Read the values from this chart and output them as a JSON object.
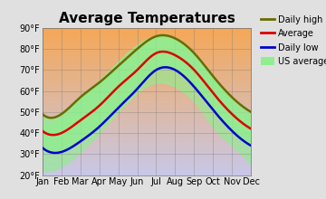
{
  "title": "Average Temperatures",
  "months": [
    "Jan",
    "Feb",
    "Mar",
    "Apr",
    "May",
    "Jun",
    "Jul",
    "Aug",
    "Sep",
    "Oct",
    "Nov",
    "Dec"
  ],
  "daily_high": [
    49,
    49,
    57,
    64,
    72,
    80,
    86,
    85,
    78,
    67,
    57,
    50
  ],
  "average": [
    41,
    40,
    46,
    53,
    62,
    70,
    78,
    77,
    70,
    59,
    49,
    42
  ],
  "daily_low": [
    33,
    31,
    36,
    43,
    52,
    61,
    70,
    70,
    62,
    51,
    41,
    34
  ],
  "us_high": [
    44,
    47,
    56,
    65,
    74,
    82,
    86,
    84,
    78,
    66,
    54,
    45
  ],
  "us_low": [
    22,
    24,
    31,
    40,
    50,
    59,
    64,
    62,
    55,
    43,
    34,
    25
  ],
  "ylim": [
    20,
    90
  ],
  "yticks": [
    20,
    30,
    40,
    50,
    60,
    70,
    80,
    90
  ],
  "ytick_labels": [
    "20°F",
    "30°F",
    "40°F",
    "50°F",
    "60°F",
    "70°F",
    "80°F",
    "90°F"
  ],
  "color_daily_high": "#6b6b00",
  "color_average": "#dd0000",
  "color_daily_low": "#0000cc",
  "color_fill_green": "#90ee90",
  "color_bg_top": "#f5a857",
  "color_bg_bottom": "#c8c8e8",
  "fig_bg": "#e0e0e0",
  "title_fontsize": 11,
  "tick_fontsize": 7,
  "legend_fontsize": 7
}
